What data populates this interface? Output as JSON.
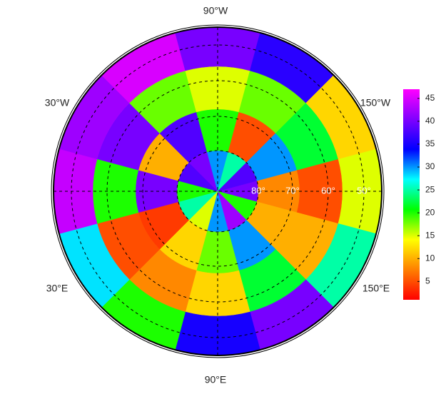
{
  "chart_data": {
    "type": "polar-map",
    "longitude_labels": [
      "90°W",
      "30°W",
      "150°W",
      "30°E",
      "150°E",
      "90°E"
    ],
    "latitude_labels": [
      "80°",
      "70°",
      "60°",
      "50°"
    ],
    "values": [
      [
        40,
        20,
        42,
        30,
        15,
        25,
        20,
        38,
        40,
        30,
        25,
        38
      ],
      [
        8,
        10,
        30,
        18,
        12,
        4,
        40,
        10,
        38,
        20,
        5,
        30
      ],
      [
        5,
        10,
        22,
        12,
        8,
        5,
        20,
        40,
        18,
        15,
        18,
        22
      ],
      [
        15,
        25,
        40,
        35,
        20,
        28,
        44,
        42,
        45,
        40,
        36,
        12
      ]
    ],
    "clim": [
      1,
      47
    ],
    "cticks": [
      5,
      10,
      15,
      20,
      25,
      30,
      35,
      40,
      45
    ],
    "colormap": [
      "#ff0000",
      "#ff8000",
      "#ffff00",
      "#00ff00",
      "#00ffff",
      "#0000ff",
      "#8000ff",
      "#ff00ff"
    ]
  }
}
